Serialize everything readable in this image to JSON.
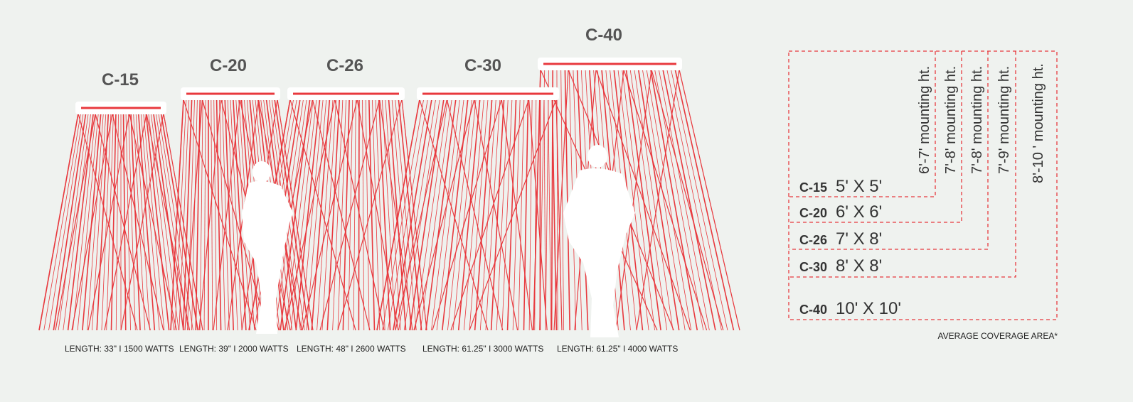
{
  "heaters": [
    {
      "label": "C-15",
      "spec": "LENGTH: 33\" I 1500 WATTS"
    },
    {
      "label": "C-20",
      "spec": "LENGTH: 39\" I 2000 WATTS"
    },
    {
      "label": "C-26",
      "spec": "LENGTH: 48\" I 2600 WATTS"
    },
    {
      "label": "C-30",
      "spec": "LENGTH: 61.25\" I 3000 WATTS"
    },
    {
      "label": "C-40",
      "spec": "LENGTH: 61.25\" I 4000 WATTS"
    }
  ],
  "coverage": {
    "rows": [
      {
        "model": "C-15",
        "area": "5' X 5'",
        "mounting": "6'-7' mounting ht."
      },
      {
        "model": "C-20",
        "area": "6' X 6'",
        "mounting": "7'-8' mounting ht."
      },
      {
        "model": "C-26",
        "area": "7' X 8'",
        "mounting": "7'-8' mounting ht."
      },
      {
        "model": "C-30",
        "area": "8' X 8'",
        "mounting": "7'-9' mounting ht."
      },
      {
        "model": "C-40",
        "area": "10' X 10'",
        "mounting": "8'-10 ' mounting ht."
      }
    ],
    "note": "AVERAGE COVERAGE AREA*"
  }
}
